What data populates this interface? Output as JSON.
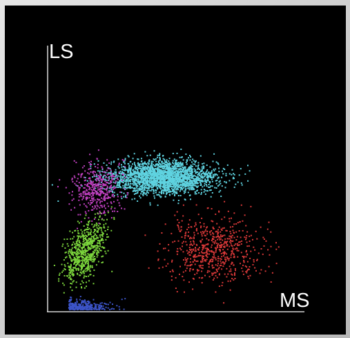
{
  "chart_data": {
    "type": "scatter",
    "xlabel": "MS",
    "ylabel": "LS",
    "xlim": [
      0,
      100
    ],
    "ylim": [
      0,
      100
    ],
    "grid": false,
    "background": "#000000",
    "axis_color": "#ffffff",
    "series": [
      {
        "color": "#5fd3e0",
        "center": [
          45,
          51
        ],
        "spread": [
          10.5,
          3.2
        ],
        "count": 2400
      },
      {
        "color": "#c040c0",
        "center": [
          19,
          47
        ],
        "spread": [
          4.6,
          5.2
        ],
        "count": 420
      },
      {
        "color": "#7cd63c",
        "center": [
          14.5,
          23
        ],
        "spread": [
          3.5,
          5.6
        ],
        "count": 700
      },
      {
        "color": "#d83838",
        "center": [
          65,
          24
        ],
        "spread": [
          9.5,
          6.0
        ],
        "count": 650
      },
      {
        "color": "#3c54c8",
        "center": [
          16,
          3
        ],
        "spread": [
          7.0,
          1.6
        ],
        "count": 320
      }
    ]
  }
}
